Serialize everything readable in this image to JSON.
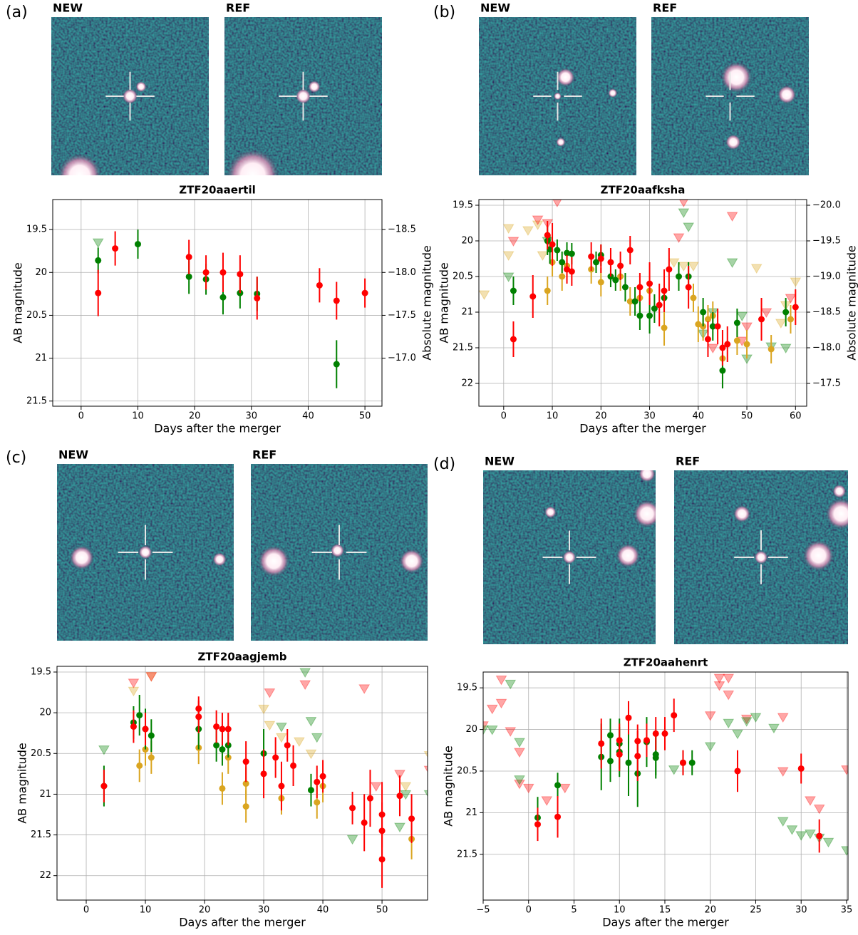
{
  "chart_data": [
    {
      "type": "scatter",
      "panel": "(a)",
      "images": [
        "NEW",
        "REF"
      ],
      "title": "ZTF20aaertil",
      "xlabel": "Days after the merger",
      "ylabel": "AB magnitude",
      "y2label": "Absolute magnitude",
      "xlim": [
        -5,
        53
      ],
      "xticks": [
        0,
        10,
        20,
        30,
        40,
        50
      ],
      "ylim": [
        21.56,
        19.15
      ],
      "yticks": [
        19.5,
        20.0,
        20.5,
        21.0,
        21.5
      ],
      "y2lim": [
        -16.44,
        -18.85
      ],
      "y2ticks": [
        {
          "value": -18.5,
          "label": "−18.5"
        },
        {
          "value": -18.0,
          "label": "−18.0"
        },
        {
          "value": -17.5,
          "label": "−17.5"
        },
        {
          "value": -17.0,
          "label": "−17.0"
        }
      ],
      "grid": true,
      "series": [
        {
          "marker": "o",
          "color": "#008000",
          "x": [
            3,
            10,
            19,
            22,
            25,
            28,
            31,
            45
          ],
          "values": [
            19.86,
            19.67,
            20.05,
            20.08,
            20.29,
            20.24,
            20.25,
            21.07
          ],
          "errors": [
            0.15,
            0.17,
            0.2,
            0.18,
            0.2,
            0.18,
            0.2,
            0.28
          ]
        },
        {
          "marker": "o",
          "color": "#ff0000",
          "x": [
            3,
            6,
            19,
            22,
            25,
            28,
            31,
            42,
            45,
            50
          ],
          "values": [
            20.24,
            19.72,
            19.82,
            20.0,
            20.0,
            20.02,
            20.3,
            20.15,
            20.33,
            20.24
          ],
          "errors": [
            0.27,
            0.2,
            0.2,
            0.2,
            0.23,
            0.22,
            0.25,
            0.2,
            0.22,
            0.17
          ]
        },
        {
          "marker": "v",
          "color": "#008000",
          "opacity": 0.35,
          "x": [
            3
          ],
          "values": [
            19.65
          ]
        }
      ]
    },
    {
      "type": "scatter",
      "panel": "(b)",
      "images": [
        "NEW",
        "REF"
      ],
      "title": "ZTF20aafksha",
      "xlabel": "Days after the merger",
      "ylabel": "AB magnitude",
      "y2label": "Absolute magnitude",
      "xlim": [
        -5.1,
        62.3
      ],
      "xticks": [
        0,
        10,
        20,
        30,
        40,
        50,
        60
      ],
      "ylim": [
        22.32,
        19.42
      ],
      "yticks": [
        19.5,
        20.0,
        20.5,
        21.0,
        21.5,
        22.0
      ],
      "y2lim": [
        -17.18,
        -20.08
      ],
      "y2ticks": [
        {
          "value": -20.0,
          "label": "−20.0"
        },
        {
          "value": -19.5,
          "label": "−19.5"
        },
        {
          "value": -19.0,
          "label": "−19.0"
        },
        {
          "value": -18.5,
          "label": "−18.5"
        },
        {
          "value": -18.0,
          "label": "−18.0"
        },
        {
          "value": -17.5,
          "label": "−17.5"
        }
      ],
      "grid": true,
      "series": [
        {
          "marker": "v",
          "color": "#daa520",
          "opacity": 0.35,
          "x": [
            -4,
            1,
            1,
            5,
            7,
            8,
            35,
            37,
            39,
            52,
            58,
            60,
            57
          ],
          "values": [
            20.75,
            19.82,
            20.2,
            19.85,
            19.77,
            20.2,
            20.3,
            20.35,
            20.35,
            20.38,
            20.9,
            20.57,
            21.15
          ]
        },
        {
          "marker": "v",
          "color": "#ff0000",
          "opacity": 0.35,
          "x": [
            2,
            7,
            9,
            11,
            36,
            37,
            47,
            43,
            49,
            50,
            54,
            59
          ],
          "values": [
            20.0,
            19.7,
            19.75,
            19.45,
            19.95,
            19.45,
            19.65,
            21.5,
            21.4,
            21.2,
            21.0,
            20.8
          ]
        },
        {
          "marker": "v",
          "color": "#008000",
          "opacity": 0.35,
          "x": [
            1,
            9,
            37,
            38,
            47,
            50,
            41,
            49,
            55,
            58,
            43
          ],
          "values": [
            20.5,
            20.0,
            19.6,
            19.8,
            20.3,
            21.65,
            21.3,
            21.05,
            21.48,
            21.5,
            21.0
          ]
        },
        {
          "marker": "o",
          "color": "#daa520",
          "x": [
            9,
            10,
            12,
            13,
            18,
            20,
            24,
            26,
            28,
            30,
            33,
            39,
            40,
            41,
            42,
            43,
            45,
            48,
            50,
            55,
            59
          ],
          "values": [
            20.7,
            20.3,
            20.5,
            20.35,
            20.4,
            20.58,
            20.5,
            20.85,
            20.8,
            20.7,
            21.22,
            20.8,
            21.17,
            21.2,
            21.1,
            21.05,
            21.65,
            21.4,
            21.45,
            21.52,
            21.1
          ],
          "errors": [
            0.2,
            0.2,
            0.2,
            0.2,
            0.2,
            0.2,
            0.2,
            0.2,
            0.2,
            0.2,
            0.25,
            0.2,
            0.25,
            0.2,
            0.2,
            0.2,
            0.2,
            0.2,
            0.2,
            0.2,
            0.2
          ]
        },
        {
          "marker": "o",
          "color": "#008000",
          "x": [
            2,
            9,
            9.5,
            11,
            12,
            13,
            14,
            19,
            20,
            22,
            23,
            25,
            27,
            28,
            30,
            31,
            33,
            36,
            38,
            41,
            43,
            45,
            48,
            58
          ],
          "values": [
            20.7,
            20.0,
            20.12,
            20.13,
            20.3,
            20.17,
            20.18,
            20.3,
            20.2,
            20.5,
            20.55,
            20.65,
            20.85,
            21.05,
            21.05,
            20.95,
            20.8,
            20.5,
            20.5,
            21.0,
            21.2,
            21.82,
            21.15,
            21.0
          ],
          "errors": [
            0.2,
            0.2,
            0.2,
            0.15,
            0.15,
            0.15,
            0.15,
            0.15,
            0.15,
            0.15,
            0.15,
            0.2,
            0.2,
            0.2,
            0.25,
            0.2,
            0.2,
            0.2,
            0.2,
            0.2,
            0.2,
            0.25,
            0.2,
            0.2
          ]
        },
        {
          "marker": "o",
          "color": "#ff0000",
          "x": [
            2,
            6,
            9,
            10,
            13,
            14,
            18,
            20,
            22,
            24,
            26,
            28,
            30,
            32,
            33,
            34,
            38,
            42,
            44,
            45,
            46,
            53,
            60
          ],
          "values": [
            21.38,
            20.78,
            19.92,
            20.05,
            20.4,
            20.43,
            20.22,
            20.25,
            20.3,
            20.35,
            20.13,
            20.65,
            20.6,
            20.9,
            20.7,
            20.4,
            20.65,
            21.38,
            21.2,
            21.5,
            21.45,
            21.1,
            20.93
          ],
          "errors": [
            0.25,
            0.3,
            0.2,
            0.3,
            0.2,
            0.2,
            0.2,
            0.2,
            0.2,
            0.2,
            0.2,
            0.2,
            0.3,
            0.3,
            0.3,
            0.3,
            0.3,
            0.25,
            0.25,
            0.25,
            0.25,
            0.3,
            0.25
          ]
        }
      ]
    },
    {
      "type": "scatter",
      "panel": "(c)",
      "images": [
        "NEW",
        "REF"
      ],
      "title": "ZTF20aagjemb",
      "xlabel": "Days after the merger",
      "ylabel": "AB magnitude",
      "xlim": [
        -4.94,
        57.7
      ],
      "xticks": [
        0,
        10,
        20,
        30,
        40,
        50
      ],
      "ylim": [
        22.3,
        19.43
      ],
      "yticks": [
        19.5,
        20.0,
        20.5,
        21.0,
        21.5,
        22.0
      ],
      "grid": true,
      "series": [
        {
          "marker": "v",
          "color": "#daa520",
          "opacity": 0.35,
          "x": [
            8,
            11,
            30,
            31,
            33,
            36,
            38,
            54,
            58
          ],
          "values": [
            19.73,
            19.55,
            19.95,
            20.15,
            20.3,
            20.35,
            20.5,
            20.9,
            20.52
          ]
        },
        {
          "marker": "v",
          "color": "#ff0000",
          "opacity": 0.35,
          "x": [
            8,
            11,
            31,
            37,
            47,
            49,
            53,
            58
          ],
          "values": [
            19.63,
            19.55,
            19.75,
            19.65,
            19.7,
            20.9,
            20.75,
            20.7
          ]
        },
        {
          "marker": "v",
          "color": "#008000",
          "opacity": 0.35,
          "x": [
            3,
            33,
            37,
            38,
            39,
            45,
            53,
            54,
            58
          ],
          "values": [
            20.45,
            20.17,
            19.5,
            20.1,
            20.3,
            21.55,
            21.4,
            21.0,
            21.0
          ]
        },
        {
          "marker": "o",
          "color": "#daa520",
          "x": [
            9,
            10,
            11,
            19,
            23,
            24,
            27,
            27,
            33,
            39,
            40,
            55
          ],
          "values": [
            20.65,
            20.45,
            20.55,
            20.43,
            20.93,
            20.55,
            20.87,
            21.15,
            21.05,
            21.1,
            20.9,
            21.55
          ],
          "errors": [
            0.2,
            0.2,
            0.2,
            0.2,
            0.2,
            0.2,
            0.2,
            0.2,
            0.2,
            0.2,
            0.2,
            0.25
          ]
        },
        {
          "marker": "o",
          "color": "#008000",
          "x": [
            3,
            8,
            9,
            10,
            11,
            19,
            22,
            23,
            24,
            30,
            38
          ],
          "values": [
            20.9,
            20.12,
            20.03,
            20.2,
            20.28,
            20.2,
            20.4,
            20.45,
            20.4,
            20.5,
            20.95
          ],
          "errors": [
            0.25,
            0.2,
            0.25,
            0.25,
            0.2,
            0.25,
            0.2,
            0.2,
            0.15,
            0.3,
            0.2
          ]
        },
        {
          "marker": "o",
          "color": "#ff0000",
          "x": [
            3,
            8,
            10,
            19,
            19,
            22,
            23,
            24,
            27,
            30,
            32,
            33,
            34,
            35,
            39,
            40,
            45,
            47,
            48,
            50,
            50,
            50,
            53,
            55
          ],
          "values": [
            20.9,
            20.17,
            20.2,
            20.05,
            19.95,
            20.17,
            20.2,
            20.2,
            20.6,
            20.75,
            20.55,
            20.9,
            20.4,
            20.65,
            20.85,
            20.78,
            21.17,
            21.35,
            21.05,
            21.25,
            21.45,
            21.8,
            21.02,
            21.3
          ],
          "errors": [
            0.2,
            0.2,
            0.2,
            0.2,
            0.15,
            0.2,
            0.2,
            0.2,
            0.25,
            0.3,
            0.25,
            0.3,
            0.2,
            0.25,
            0.2,
            0.2,
            0.2,
            0.35,
            0.35,
            0.4,
            0.35,
            0.35,
            0.25,
            0.3
          ]
        }
      ]
    },
    {
      "type": "scatter",
      "panel": "(d)",
      "images": [
        "NEW",
        "REF"
      ],
      "title": "ZTF20aahenrt",
      "xlabel": "Days after the merger",
      "ylabel": "AB magnitude",
      "xlim": [
        -5,
        35.16
      ],
      "xticks": [
        {
          "value": -5,
          "label": "−5"
        },
        0,
        5,
        10,
        15,
        20,
        25,
        30,
        35
      ],
      "ylim": [
        22.05,
        19.31
      ],
      "yticks": [
        19.5,
        20.0,
        20.5,
        21.0,
        21.5
      ],
      "grid": true,
      "series": [
        {
          "marker": "v",
          "color": "#ff0000",
          "opacity": 0.35,
          "x": [
            -5,
            -4,
            -3,
            -3,
            -2,
            -1,
            -1,
            0,
            2,
            4,
            20,
            21,
            21,
            22,
            22,
            24,
            28,
            28,
            31,
            32,
            35
          ],
          "values": [
            19.95,
            19.75,
            19.4,
            19.68,
            20.02,
            20.27,
            20.65,
            20.7,
            20.85,
            20.7,
            19.83,
            19.47,
            19.38,
            19.38,
            19.58,
            19.87,
            19.85,
            20.5,
            20.85,
            20.95,
            20.48
          ]
        },
        {
          "marker": "v",
          "color": "#008000",
          "opacity": 0.35,
          "x": [
            -5,
            -4,
            -2,
            -1,
            -1,
            16,
            20,
            22,
            23,
            24,
            25,
            27,
            28,
            29,
            30,
            31,
            32,
            33,
            35
          ],
          "values": [
            20.0,
            20.0,
            19.45,
            20.15,
            20.6,
            20.48,
            20.2,
            19.92,
            20.05,
            19.9,
            19.85,
            19.98,
            21.1,
            21.2,
            21.27,
            21.25,
            21.3,
            21.35,
            21.45
          ]
        },
        {
          "marker": "o",
          "color": "#008000",
          "x": [
            1,
            3.2,
            8,
            9,
            9,
            10,
            10,
            11,
            12,
            13,
            14,
            14,
            17,
            18
          ],
          "values": [
            21.06,
            20.67,
            20.33,
            20.38,
            20.07,
            20.27,
            20.17,
            20.4,
            20.53,
            20.15,
            20.3,
            20.34,
            20.4,
            20.4
          ],
          "errors": [
            0.25,
            0.15,
            0.4,
            0.25,
            0.2,
            0.3,
            0.3,
            0.4,
            0.4,
            0.3,
            0.25,
            0.25,
            0.15,
            0.15
          ]
        },
        {
          "marker": "o",
          "color": "#ff0000",
          "x": [
            1,
            3.2,
            8,
            10,
            10,
            11,
            12,
            12,
            13,
            14,
            15,
            16,
            17,
            23,
            30,
            32
          ],
          "values": [
            21.14,
            21.05,
            20.17,
            20.13,
            20.3,
            19.86,
            20.14,
            20.32,
            20.13,
            20.05,
            20.05,
            19.83,
            20.4,
            20.5,
            20.47,
            21.28
          ],
          "errors": [
            0.2,
            0.25,
            0.3,
            0.2,
            0.2,
            0.2,
            0.2,
            0.3,
            0.2,
            0.2,
            0.2,
            0.2,
            0.15,
            0.25,
            0.18,
            0.2
          ]
        }
      ]
    }
  ]
}
